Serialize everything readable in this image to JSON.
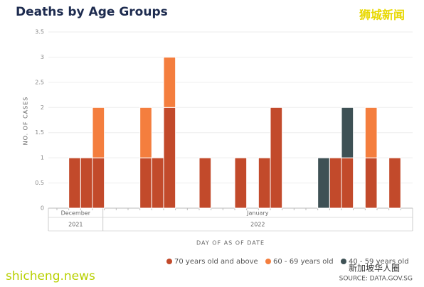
{
  "chart_data": {
    "type": "stacked_bar",
    "title": "Deaths by Age Groups",
    "y_label": "NO. OF CASES",
    "x_label": "DAY OF AS OF DATE",
    "months": [
      "December",
      "January"
    ],
    "years": [
      "2021",
      "2022"
    ],
    "categories": [
      null,
      null,
      null,
      null,
      null,
      null,
      null,
      null,
      null,
      null,
      null,
      null,
      null,
      null,
      null,
      null,
      null,
      null,
      null,
      null,
      null,
      null,
      null,
      null,
      null,
      null,
      null,
      null,
      null,
      null
    ],
    "series": [
      {
        "name": "70 years old and above",
        "color": "#c24a2b",
        "values": [
          0,
          1,
          1,
          1,
          0,
          0,
          0,
          1,
          1,
          2,
          0,
          0,
          1,
          0,
          0,
          1,
          0,
          1,
          2,
          0,
          0,
          0,
          0,
          1,
          1,
          0,
          1,
          0,
          1,
          0
        ]
      },
      {
        "name": "60 - 69 years old",
        "color": "#f47e3e",
        "values": [
          0,
          0,
          0,
          1,
          0,
          0,
          0,
          1,
          0,
          1,
          0,
          0,
          0,
          0,
          0,
          0,
          0,
          0,
          0,
          0,
          0,
          0,
          0,
          0,
          0,
          0,
          1,
          0,
          0,
          0
        ]
      },
      {
        "name": "40 - 59 years old",
        "color": "#3e5155",
        "values": [
          0,
          0,
          0,
          0,
          0,
          0,
          0,
          0,
          0,
          0,
          0,
          0,
          0,
          0,
          0,
          0,
          0,
          0,
          0,
          0,
          0,
          0,
          1,
          0,
          1,
          0,
          0,
          0,
          0,
          0
        ]
      }
    ],
    "ylim": [
      0,
      3.5
    ],
    "yticks": [
      0,
      0.5,
      1,
      1.5,
      2,
      2.5,
      3,
      3.5
    ],
    "grid": true,
    "legend": "bottom",
    "source": "SOURCE: DATA.GOV.SG"
  },
  "watermarks": [
    "狮城新闻",
    "shicheng.news",
    "新加坡华人圈"
  ]
}
